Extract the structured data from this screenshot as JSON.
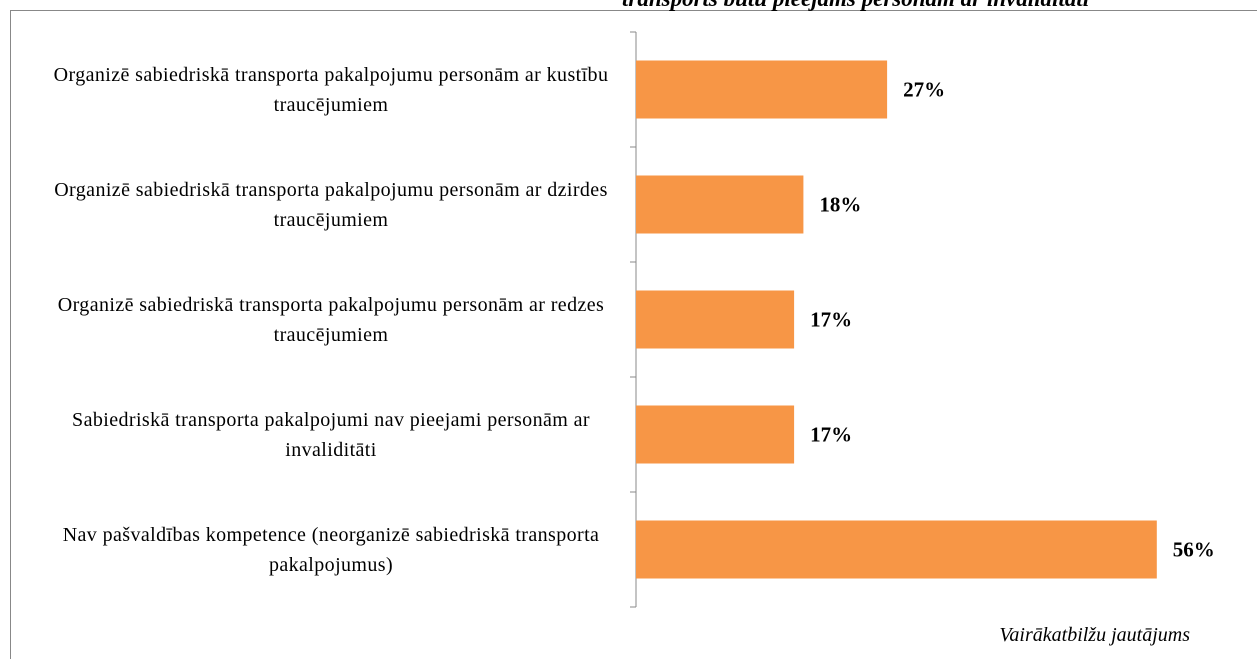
{
  "chart_data": {
    "type": "bar",
    "orientation": "horizontal",
    "title": "transports būtu pieejams personām ar invaliditāti",
    "categories": [
      "Organizē sabiedriskā transporta pakalpojumu personām ar kustību traucējumiem",
      "Organizē sabiedriskā transporta pakalpojumu personām ar dzirdes traucējumiem",
      "Organizē sabiedriskā transporta pakalpojumu personām ar redzes traucējumiem",
      "Sabiedriskā transporta pakalpojumi nav pieejami personām ar invaliditāti",
      "Nav pašvaldības kompetence (neorganizē sabiedriskā transporta pakalpojumus)"
    ],
    "values": [
      27,
      18,
      17,
      17,
      56
    ],
    "value_labels": [
      "27%",
      "18%",
      "17%",
      "17%",
      "56%"
    ],
    "color": "#f79646",
    "note": "Vairākatbilžu jautājums"
  }
}
